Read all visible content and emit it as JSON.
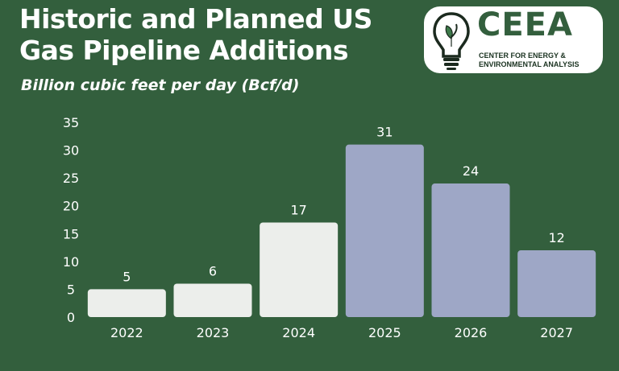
{
  "header": {
    "title_line1": "Historic and Planned US",
    "title_line2": "Gas Pipeline Additions",
    "subtitle": "Billion cubic feet per day (Bcf/d)"
  },
  "logo": {
    "name": "CEEA",
    "sub_line1": "CENTER FOR ENERGY &",
    "sub_line2": "ENVIRONMENTAL ANALYSIS",
    "icon": "lightbulb-leaf-icon"
  },
  "colors": {
    "background": "#335f3d",
    "historic_bar": "#eceeeb",
    "planned_bar": "#9ea7c6",
    "text": "#ffffff"
  },
  "chart_data": {
    "type": "bar",
    "categories": [
      "2022",
      "2023",
      "2024",
      "2025",
      "2026",
      "2027"
    ],
    "values": [
      5,
      6,
      17,
      31,
      24,
      12
    ],
    "bar_groups": [
      "historic",
      "historic",
      "historic",
      "planned",
      "planned",
      "planned"
    ],
    "title": "Historic and Planned US Gas Pipeline Additions",
    "ylabel": "Billion cubic feet per day (Bcf/d)",
    "xlabel": "",
    "ylim": [
      0,
      35
    ],
    "yticks": [
      0,
      5,
      10,
      15,
      20,
      25,
      30,
      35
    ],
    "data_labels": true,
    "grid": false,
    "legend": "none"
  }
}
